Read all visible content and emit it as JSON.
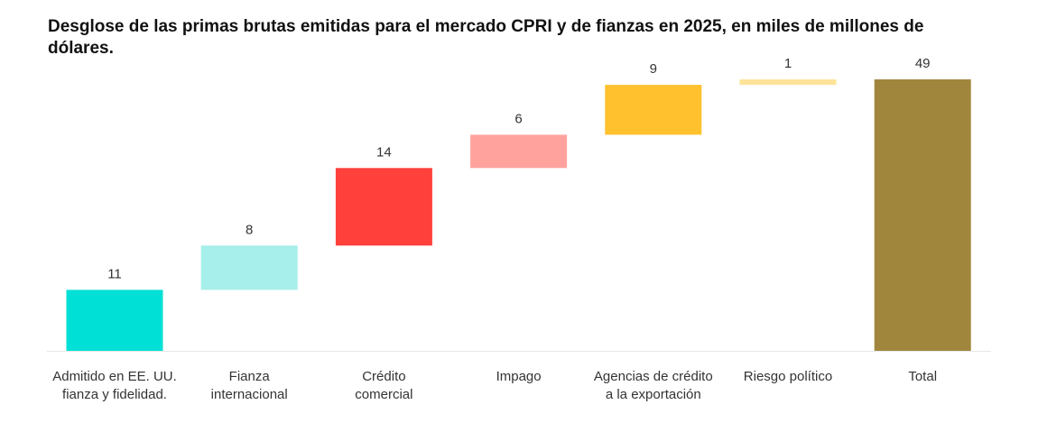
{
  "chart_data": {
    "type": "bar",
    "subtype": "waterfall",
    "title": "Desglose de las primas brutas emitidas para el mercado CPRI y de fianzas en 2025, en miles de millones de dólares.",
    "xlabel": "",
    "ylabel": "",
    "grid": false,
    "legend": "none",
    "ylim": [
      0,
      49
    ],
    "categories": [
      [
        "Admitido en EE. UU.",
        "fianza y fidelidad."
      ],
      [
        "Fianza",
        "internacional"
      ],
      [
        "Crédito",
        "comercial"
      ],
      [
        "Impago"
      ],
      [
        "Agencias de crédito",
        "a la exportación"
      ],
      [
        "Riesgo político"
      ],
      [
        "Total"
      ]
    ],
    "values": [
      11,
      8,
      14,
      6,
      9,
      1,
      49
    ],
    "value_labels": [
      "11",
      "8",
      "14",
      "6",
      "9",
      "1",
      "49"
    ],
    "is_total": [
      false,
      false,
      false,
      false,
      false,
      false,
      true
    ],
    "colors": [
      "#00e0d6",
      "#a6efea",
      "#ff403b",
      "#ffa29e",
      "#ffc12e",
      "#fde39a",
      "#a0863c"
    ]
  }
}
